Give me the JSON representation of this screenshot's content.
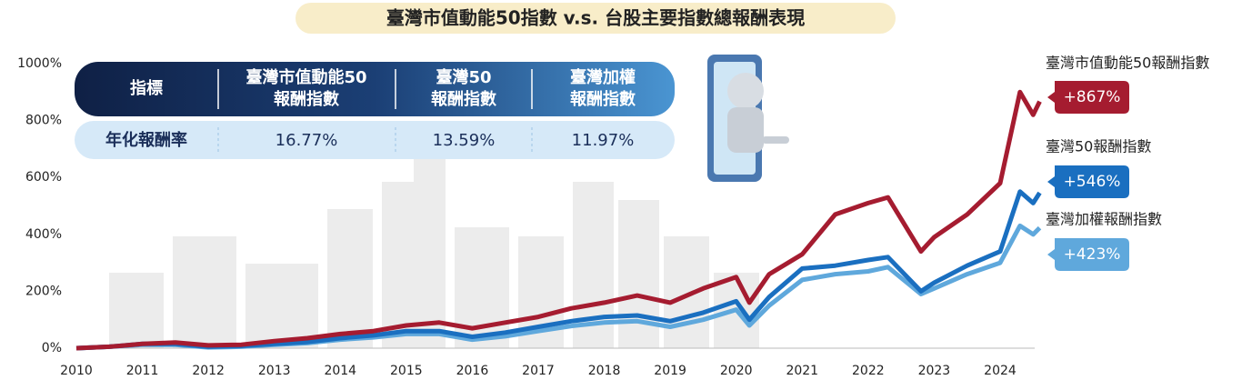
{
  "chart_data": {
    "type": "line",
    "title": "臺灣市值動能50指數 v.s. 台股主要指數總報酬表現",
    "x": [
      2010,
      2010.5,
      2011,
      2011.5,
      2012,
      2012.5,
      2013,
      2013.5,
      2014,
      2014.5,
      2015,
      2015.5,
      2016,
      2016.5,
      2017,
      2017.5,
      2018,
      2018.5,
      2019,
      2019.5,
      2020,
      2020.2,
      2020.5,
      2021,
      2021.5,
      2022,
      2022.3,
      2022.8,
      2023,
      2023.5,
      2024,
      2024.3,
      2024.5,
      2024.6
    ],
    "xlim": [
      2010,
      2024.6
    ],
    "xticks": [
      2010,
      2011,
      2012,
      2013,
      2014,
      2015,
      2016,
      2017,
      2018,
      2019,
      2020,
      2021,
      2022,
      2023,
      2024
    ],
    "ylim": [
      0,
      1000
    ],
    "yticks": [
      {
        "value": 0,
        "label": "0%"
      },
      {
        "value": 200,
        "label": "200%"
      },
      {
        "value": 400,
        "label": "400%"
      },
      {
        "value": 600,
        "label": "600%"
      },
      {
        "value": 800,
        "label": "800%"
      },
      {
        "value": 1000,
        "label": "1000%"
      }
    ],
    "series": [
      {
        "name": "臺灣市值動能50報酬指數",
        "color": "#a51c30",
        "values": [
          0,
          5,
          15,
          20,
          10,
          12,
          25,
          35,
          50,
          60,
          80,
          90,
          70,
          90,
          110,
          140,
          160,
          185,
          160,
          210,
          250,
          160,
          260,
          330,
          470,
          510,
          530,
          340,
          390,
          470,
          580,
          900,
          820,
          867
        ],
        "value_labels": [
          null,
          null,
          null,
          null,
          null,
          null,
          null,
          null,
          null,
          null,
          null,
          null,
          null,
          null,
          null,
          null,
          null,
          null,
          null,
          null,
          null,
          null,
          null,
          null,
          null,
          null,
          null,
          null,
          null,
          null,
          null,
          null,
          null,
          "+867%"
        ]
      },
      {
        "name": "臺灣50報酬指數",
        "color": "#1a6fc0",
        "values": [
          0,
          5,
          15,
          15,
          5,
          8,
          15,
          22,
          35,
          45,
          60,
          60,
          40,
          55,
          75,
          95,
          110,
          115,
          95,
          125,
          165,
          100,
          180,
          280,
          290,
          310,
          320,
          200,
          230,
          290,
          340,
          550,
          510,
          546
        ],
        "value_labels": [
          null,
          null,
          null,
          null,
          null,
          null,
          null,
          null,
          null,
          null,
          null,
          null,
          null,
          null,
          null,
          null,
          null,
          null,
          null,
          null,
          null,
          null,
          null,
          null,
          null,
          null,
          null,
          null,
          null,
          null,
          null,
          null,
          null,
          "+546%"
        ]
      },
      {
        "name": "臺灣加權報酬指數",
        "color": "#5fa8dc",
        "values": [
          0,
          5,
          12,
          12,
          3,
          5,
          12,
          18,
          30,
          38,
          50,
          50,
          30,
          42,
          60,
          78,
          90,
          95,
          75,
          100,
          135,
          80,
          150,
          240,
          260,
          270,
          285,
          190,
          210,
          260,
          300,
          430,
          400,
          423
        ],
        "value_labels": [
          null,
          null,
          null,
          null,
          null,
          null,
          null,
          null,
          null,
          null,
          null,
          null,
          null,
          null,
          null,
          null,
          null,
          null,
          null,
          null,
          null,
          null,
          null,
          null,
          null,
          null,
          null,
          null,
          null,
          null,
          null,
          null,
          null,
          "+423%"
        ]
      }
    ]
  },
  "table": {
    "header": [
      [
        "指標"
      ],
      [
        "臺灣市值動能50",
        "報酬指數"
      ],
      [
        "臺灣50",
        "報酬指數"
      ],
      [
        "臺灣加權",
        "報酬指數"
      ]
    ],
    "row": [
      "年化報酬率",
      "16.77%",
      "13.59%",
      "11.97%"
    ]
  }
}
